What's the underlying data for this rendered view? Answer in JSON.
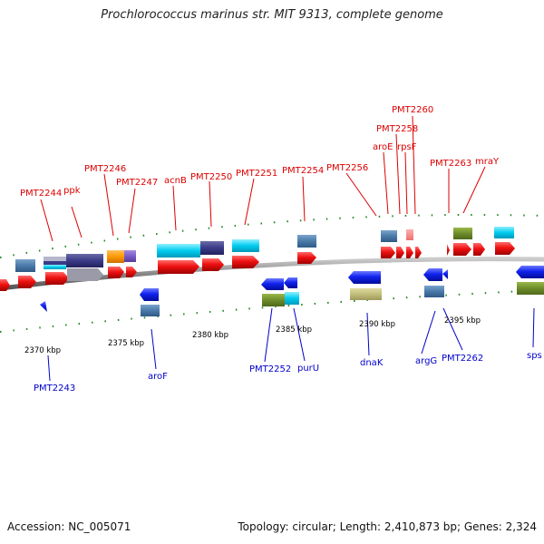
{
  "title": "Prochlorococcus marinus str. MIT 9313, complete genome",
  "accession": "Accession: NC_005071",
  "topology": "Topology: circular; Length: 2,410,873 bp; Genes: 2,324",
  "colors": {
    "forward_label": "#dd0000",
    "reverse_label": "#0000cc",
    "forward_gene": "#ee1111",
    "reverse_gene": "#1122ee",
    "backbone": "#888888",
    "tick": "#228822"
  },
  "kbp_labels": [
    "2370 kbp",
    "2375 kbp",
    "2380 kbp",
    "2385 kbp",
    "2390 kbp",
    "2395 kbp"
  ],
  "forward_labels": [
    "PMT2244",
    "ppk",
    "PMT2246",
    "PMT2247",
    "acnB",
    "PMT2250",
    "PMT2251",
    "PMT2254",
    "PMT2256",
    "aroE",
    "PMT2258",
    "rpsF",
    "PMT2260",
    "PMT2263",
    "mraY"
  ],
  "reverse_labels": [
    "PMT2243",
    "aroF",
    "PMT2252",
    "purU",
    "dnaK",
    "argG",
    "PMT2262",
    "sps"
  ]
}
